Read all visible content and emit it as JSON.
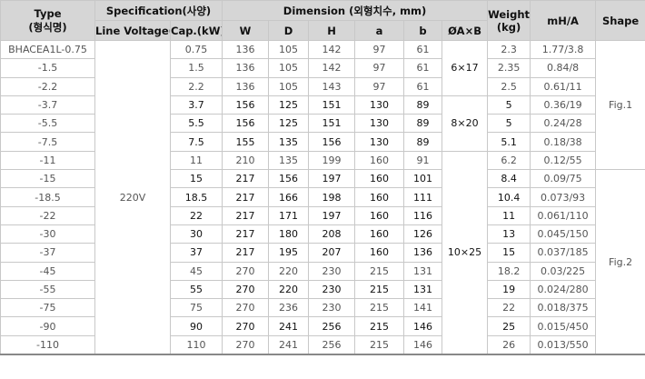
{
  "headers": {
    "type": "Type",
    "type_kr": "(형식명)",
    "specification": "Specification(사양)",
    "line_voltage": "Line Voltage(V)",
    "cap": "Cap.(kW)",
    "dimension": "Dimension (외형치수, mm)",
    "w": "W",
    "d": "D",
    "h": "H",
    "a": "a",
    "b": "b",
    "oab": "ØA×B",
    "weight": "Weight",
    "weight_unit": "(kg)",
    "mha": "mH/A",
    "shape": "Shape"
  },
  "voltage": "220V",
  "oab_groups": [
    "6×17",
    "8×20",
    "10×25"
  ],
  "shapes": [
    "Fig.1",
    "Fig.2"
  ],
  "rows": [
    {
      "type": "BHACEA1L-0.75",
      "cap": "0.75",
      "w": "136",
      "d": "105",
      "h": "142",
      "a": "97",
      "b": "61",
      "weight": "2.3",
      "mha": "1.77/3.8"
    },
    {
      "type": "-1.5",
      "cap": "1.5",
      "w": "136",
      "d": "105",
      "h": "142",
      "a": "97",
      "b": "61",
      "weight": "2.35",
      "mha": "0.84/8"
    },
    {
      "type": "-2.2",
      "cap": "2.2",
      "w": "136",
      "d": "105",
      "h": "143",
      "a": "97",
      "b": "61",
      "weight": "2.5",
      "mha": "0.61/11"
    },
    {
      "type": "-3.7",
      "cap": "3.7",
      "w": "156",
      "d": "125",
      "h": "151",
      "a": "130",
      "b": "89",
      "weight": "5",
      "mha": "0.36/19"
    },
    {
      "type": "-5.5",
      "cap": "5.5",
      "w": "156",
      "d": "125",
      "h": "151",
      "a": "130",
      "b": "89",
      "weight": "5",
      "mha": "0.24/28"
    },
    {
      "type": "-7.5",
      "cap": "7.5",
      "w": "155",
      "d": "135",
      "h": "156",
      "a": "130",
      "b": "89",
      "weight": "5.1",
      "mha": "0.18/38"
    },
    {
      "type": "-11",
      "cap": "11",
      "w": "210",
      "d": "135",
      "h": "199",
      "a": "160",
      "b": "91",
      "weight": "6.2",
      "mha": "0.12/55"
    },
    {
      "type": "-15",
      "cap": "15",
      "w": "217",
      "d": "156",
      "h": "197",
      "a": "160",
      "b": "101",
      "weight": "8.4",
      "mha": "0.09/75"
    },
    {
      "type": "-18.5",
      "cap": "18.5",
      "w": "217",
      "d": "166",
      "h": "198",
      "a": "160",
      "b": "111",
      "weight": "10.4",
      "mha": "0.073/93"
    },
    {
      "type": "-22",
      "cap": "22",
      "w": "217",
      "d": "171",
      "h": "197",
      "a": "160",
      "b": "116",
      "weight": "11",
      "mha": "0.061/110"
    },
    {
      "type": "-30",
      "cap": "30",
      "w": "217",
      "d": "180",
      "h": "208",
      "a": "160",
      "b": "126",
      "weight": "13",
      "mha": "0.045/150"
    },
    {
      "type": "-37",
      "cap": "37",
      "w": "217",
      "d": "195",
      "h": "207",
      "a": "160",
      "b": "136",
      "weight": "15",
      "mha": "0.037/185"
    },
    {
      "type": "-45",
      "cap": "45",
      "w": "270",
      "d": "220",
      "h": "230",
      "a": "215",
      "b": "131",
      "weight": "18.2",
      "mha": "0.03/225"
    },
    {
      "type": "-55",
      "cap": "55",
      "w": "270",
      "d": "220",
      "h": "230",
      "a": "215",
      "b": "131",
      "weight": "19",
      "mha": "0.024/280"
    },
    {
      "type": "-75",
      "cap": "75",
      "w": "270",
      "d": "236",
      "h": "230",
      "a": "215",
      "b": "141",
      "weight": "22",
      "mha": "0.018/375"
    },
    {
      "type": "-90",
      "cap": "90",
      "w": "270",
      "d": "241",
      "h": "256",
      "a": "215",
      "b": "146",
      "weight": "25",
      "mha": "0.015/450"
    },
    {
      "type": "-110",
      "cap": "110",
      "w": "270",
      "d": "241",
      "h": "256",
      "a": "215",
      "b": "146",
      "weight": "26",
      "mha": "0.013/550"
    }
  ]
}
